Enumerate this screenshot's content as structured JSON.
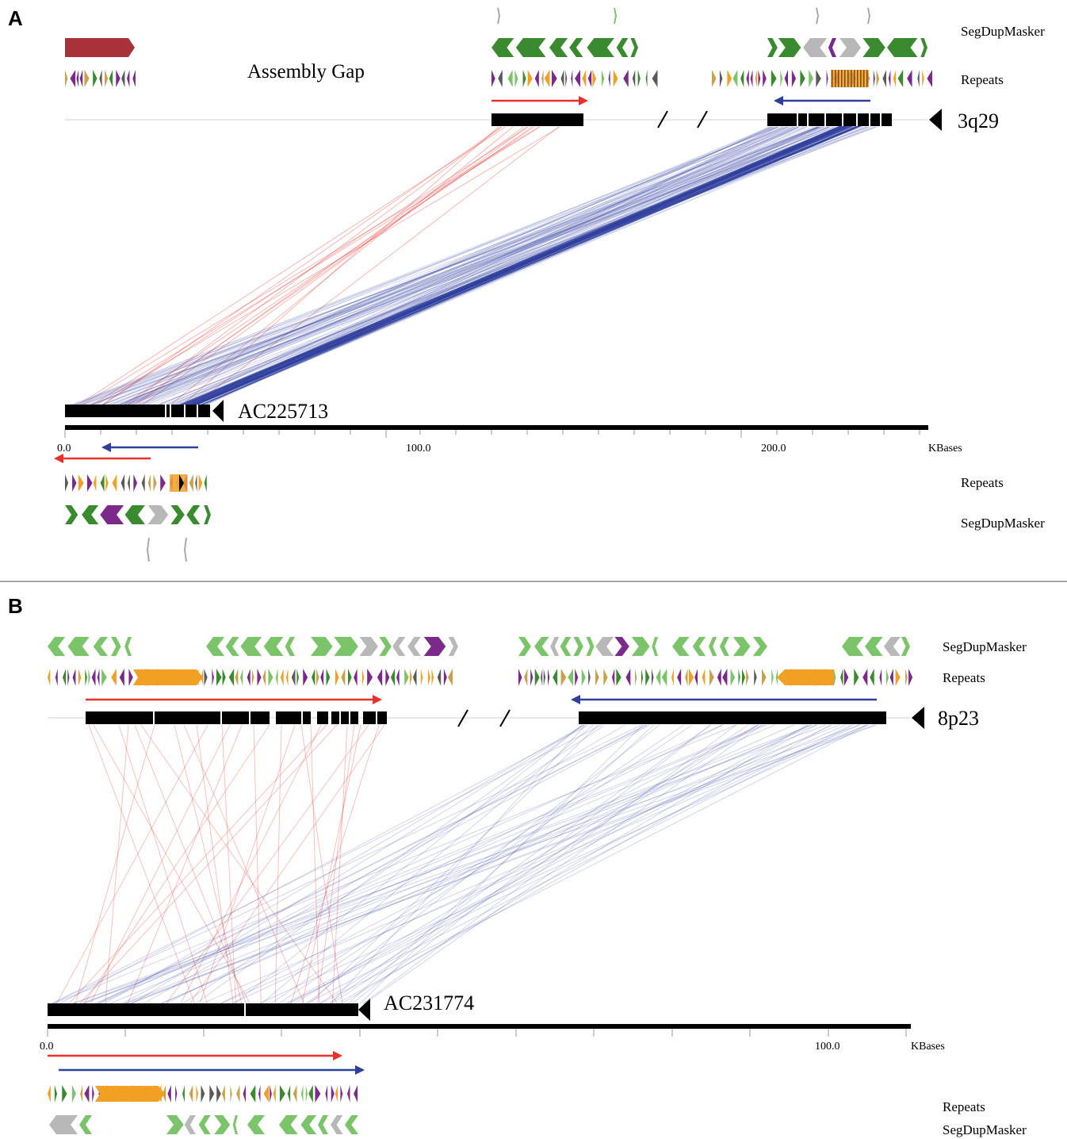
{
  "panels": [
    {
      "letter": "A",
      "top_sequence": "3q29",
      "bottom_sequence": "AC225713",
      "top_track_labels": [
        "SegDupMasker",
        "Repeats"
      ],
      "bottom_track_labels": [
        "Repeats",
        "SegDupMasker"
      ],
      "annotation": "Assembly Gap",
      "axis": {
        "ticks": [
          "0.0",
          "100.0",
          "200.0"
        ],
        "unit": "KBases"
      }
    },
    {
      "letter": "B",
      "top_sequence": "8p23",
      "bottom_sequence": "AC231774",
      "top_track_labels": [
        "SegDupMasker",
        "Repeats"
      ],
      "bottom_track_labels": [
        "Repeats",
        "SegDupMasker"
      ],
      "axis": {
        "ticks": [
          "0.0",
          "100.0"
        ],
        "unit": "KBases"
      }
    }
  ],
  "colors": {
    "forward_match": "#e8302c",
    "reverse_match": "#2f3f9e",
    "segdup_dark": "#3a8a2f",
    "segdup_light": "#7cc46a",
    "segdup_gray": "#b8b8b8",
    "repeat_orange": "#f2a024",
    "repeat_purple": "#7b2a8c",
    "assembly_gap": "#a8323a",
    "sequence": "#000000"
  },
  "icons": [
    "orientation-arrowhead-icon",
    "gap-break-slash-icon"
  ]
}
